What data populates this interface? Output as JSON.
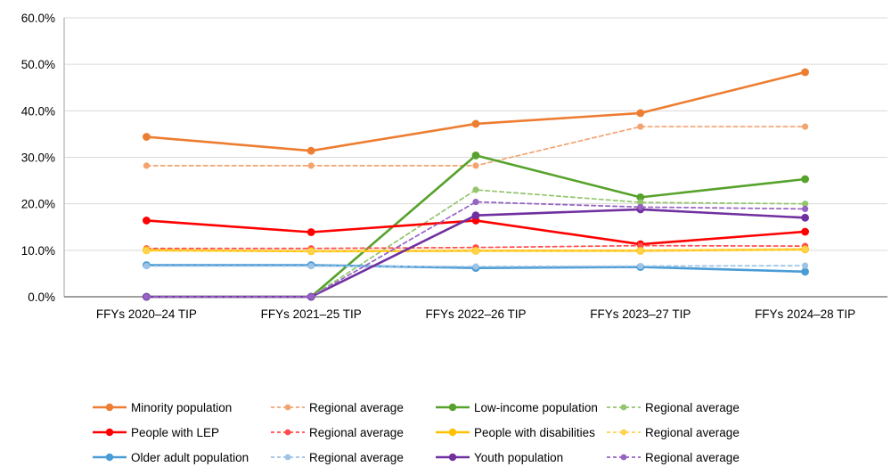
{
  "chart_data": {
    "type": "line",
    "title": "",
    "xlabel": "",
    "ylabel": "",
    "ylim": [
      0,
      60
    ],
    "y_tick_step": 10,
    "y_tick_labels": [
      "0.0%",
      "10.0%",
      "20.0%",
      "30.0%",
      "40.0%",
      "50.0%",
      "60.0%"
    ],
    "grid": true,
    "legend_position": "bottom",
    "categories": [
      "FFYs 2020–24 TIP",
      "FFYs 2021–25 TIP",
      "FFYs 2022–26 TIP",
      "FFYs 2023–27 TIP",
      "FFYs 2024–28 TIP"
    ],
    "series": [
      {
        "name": "Minority population",
        "style": "solid",
        "color": "#ED7D31",
        "values": [
          34.4,
          31.4,
          37.2,
          39.5,
          48.3
        ]
      },
      {
        "name": "Regional average",
        "style": "dashed",
        "color": "#F2A470",
        "values": [
          28.2,
          28.2,
          28.2,
          36.6,
          36.6
        ]
      },
      {
        "name": "Low-income population",
        "style": "solid",
        "color": "#56A22B",
        "values": [
          0.0,
          0.0,
          30.4,
          21.4,
          25.3
        ]
      },
      {
        "name": "Regional average",
        "style": "dashed",
        "color": "#93C56D",
        "values": [
          0.0,
          0.0,
          23.0,
          20.3,
          20.0
        ]
      },
      {
        "name": "People with LEP",
        "style": "solid",
        "color": "#FF0000",
        "values": [
          16.4,
          13.9,
          16.4,
          11.3,
          14.0
        ]
      },
      {
        "name": "Regional average",
        "style": "dashed",
        "color": "#FF4C4C",
        "values": [
          10.4,
          10.4,
          10.6,
          11.0,
          10.9
        ]
      },
      {
        "name": "People with disabilities",
        "style": "solid",
        "color": "#FFC000",
        "values": [
          10.0,
          9.8,
          9.9,
          9.9,
          10.2
        ]
      },
      {
        "name": "Regional average",
        "style": "dashed",
        "color": "#FFD34D",
        "values": [
          9.9,
          9.8,
          9.9,
          9.9,
          10.2
        ]
      },
      {
        "name": "Older adult population",
        "style": "solid",
        "color": "#4A9CD6",
        "values": [
          6.8,
          6.8,
          6.2,
          6.4,
          5.4
        ]
      },
      {
        "name": "Regional average",
        "style": "dashed",
        "color": "#9DC3E6",
        "values": [
          6.6,
          6.6,
          6.5,
          6.6,
          6.7
        ]
      },
      {
        "name": "Youth population",
        "style": "solid",
        "color": "#7030A0",
        "values": [
          0.0,
          0.0,
          17.5,
          18.8,
          17.0
        ]
      },
      {
        "name": "Regional average",
        "style": "dashed",
        "color": "#9663C4",
        "values": [
          0.0,
          0.0,
          20.4,
          19.3,
          18.9
        ]
      }
    ],
    "legend_order": [
      0,
      1,
      2,
      3,
      4,
      5,
      6,
      7,
      8,
      9,
      10,
      11
    ],
    "colors": {
      "gridline": "#D9D9D9",
      "y_axis_line": "#BFBFBF",
      "x_axis_line": "#808080"
    }
  }
}
